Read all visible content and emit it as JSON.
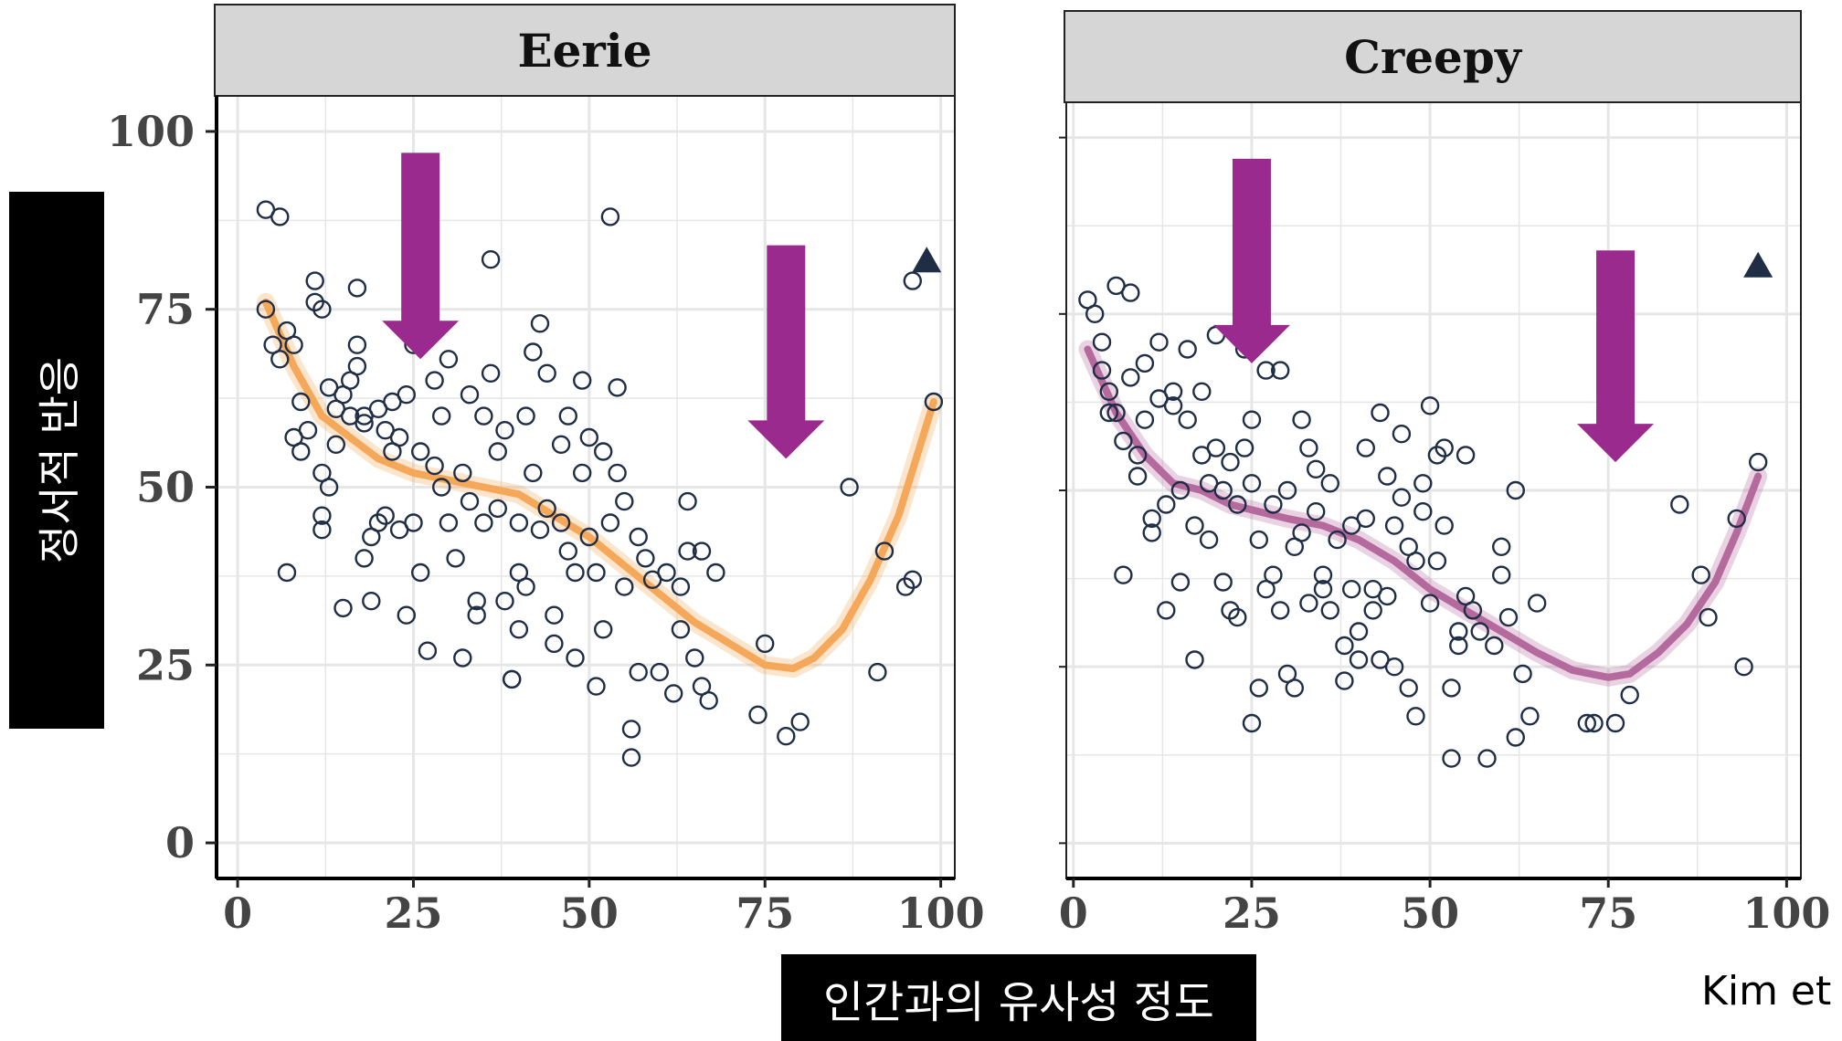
{
  "colors": {
    "eerie_line": "#f5a85a",
    "creepy_line": "#b56a9e",
    "points": "#1f2d45",
    "arrows": "#9b2a8e",
    "strip_bg": "#d6d6d6",
    "grid": "#e6e6e6"
  },
  "labels": {
    "ylabel": "정서적 반응",
    "xlabel": "인간과의 유사성 정도",
    "credit": "Kim et"
  },
  "chart_data": [
    {
      "type": "scatter",
      "title": "Eerie",
      "xlim": [
        -3,
        102
      ],
      "ylim": [
        -5,
        105
      ],
      "xticks": [
        0,
        25,
        50,
        75,
        100
      ],
      "yticks": [
        0,
        25,
        50,
        75,
        100
      ],
      "grid": true,
      "show_y_ticks": true,
      "points": [
        [
          4,
          89
        ],
        [
          6,
          88
        ],
        [
          4,
          75
        ],
        [
          5,
          70
        ],
        [
          6,
          68
        ],
        [
          7,
          72
        ],
        [
          8,
          70
        ],
        [
          7,
          38
        ],
        [
          8,
          57
        ],
        [
          9,
          55
        ],
        [
          9,
          62
        ],
        [
          10,
          58
        ],
        [
          11,
          76
        ],
        [
          11,
          79
        ],
        [
          12,
          75
        ],
        [
          12,
          52
        ],
        [
          12,
          46
        ],
        [
          12,
          44
        ],
        [
          13,
          64
        ],
        [
          13,
          50
        ],
        [
          14,
          56
        ],
        [
          14,
          61
        ],
        [
          15,
          33
        ],
        [
          15,
          63
        ],
        [
          16,
          60
        ],
        [
          16,
          65
        ],
        [
          17,
          78
        ],
        [
          17,
          70
        ],
        [
          17,
          67
        ],
        [
          18,
          60
        ],
        [
          18,
          59
        ],
        [
          18,
          40
        ],
        [
          19,
          34
        ],
        [
          19,
          43
        ],
        [
          20,
          45
        ],
        [
          20,
          61
        ],
        [
          21,
          58
        ],
        [
          21,
          46
        ],
        [
          22,
          55
        ],
        [
          22,
          62
        ],
        [
          23,
          57
        ],
        [
          23,
          44
        ],
        [
          24,
          63
        ],
        [
          24,
          32
        ],
        [
          25,
          77
        ],
        [
          25,
          86
        ],
        [
          25,
          70
        ],
        [
          25,
          45
        ],
        [
          26,
          55
        ],
        [
          26,
          38
        ],
        [
          27,
          27
        ],
        [
          28,
          65
        ],
        [
          28,
          53
        ],
        [
          29,
          60
        ],
        [
          29,
          50
        ],
        [
          30,
          68
        ],
        [
          30,
          45
        ],
        [
          31,
          40
        ],
        [
          32,
          26
        ],
        [
          32,
          52
        ],
        [
          33,
          48
        ],
        [
          33,
          63
        ],
        [
          34,
          34
        ],
        [
          34,
          32
        ],
        [
          35,
          60
        ],
        [
          35,
          45
        ],
        [
          36,
          82
        ],
        [
          36,
          66
        ],
        [
          37,
          55
        ],
        [
          37,
          47
        ],
        [
          38,
          34
        ],
        [
          38,
          58
        ],
        [
          39,
          23
        ],
        [
          39,
          23
        ],
        [
          40,
          45
        ],
        [
          40,
          38
        ],
        [
          40,
          30
        ],
        [
          41,
          60
        ],
        [
          41,
          36
        ],
        [
          42,
          52
        ],
        [
          42,
          69
        ],
        [
          43,
          73
        ],
        [
          43,
          44
        ],
        [
          44,
          66
        ],
        [
          44,
          47
        ],
        [
          45,
          32
        ],
        [
          45,
          28
        ],
        [
          46,
          56
        ],
        [
          46,
          45
        ],
        [
          47,
          60
        ],
        [
          47,
          41
        ],
        [
          48,
          26
        ],
        [
          48,
          38
        ],
        [
          49,
          52
        ],
        [
          49,
          65
        ],
        [
          50,
          57
        ],
        [
          50,
          43
        ],
        [
          51,
          22
        ],
        [
          51,
          38
        ],
        [
          52,
          30
        ],
        [
          52,
          55
        ],
        [
          53,
          88
        ],
        [
          53,
          45
        ],
        [
          54,
          64
        ],
        [
          54,
          52
        ],
        [
          55,
          48
        ],
        [
          55,
          36
        ],
        [
          56,
          16
        ],
        [
          56,
          12
        ],
        [
          57,
          43
        ],
        [
          57,
          24
        ],
        [
          58,
          40
        ],
        [
          59,
          37
        ],
        [
          60,
          24
        ],
        [
          61,
          38
        ],
        [
          62,
          21
        ],
        [
          63,
          30
        ],
        [
          63,
          36
        ],
        [
          64,
          48
        ],
        [
          64,
          41
        ],
        [
          65,
          26
        ],
        [
          66,
          41
        ],
        [
          66,
          22
        ],
        [
          67,
          20
        ],
        [
          68,
          38
        ],
        [
          74,
          18
        ],
        [
          75,
          28
        ],
        [
          78,
          15
        ],
        [
          80,
          17
        ],
        [
          87,
          50
        ],
        [
          91,
          24
        ],
        [
          92,
          41
        ],
        [
          95,
          36
        ],
        [
          96,
          37
        ],
        [
          96,
          79
        ],
        [
          99,
          62
        ]
      ],
      "triangle": [
        98,
        82
      ],
      "smooth": [
        [
          4,
          76
        ],
        [
          8,
          67
        ],
        [
          12,
          60
        ],
        [
          16,
          57
        ],
        [
          20,
          54
        ],
        [
          25,
          52
        ],
        [
          30,
          51
        ],
        [
          35,
          50
        ],
        [
          40,
          49
        ],
        [
          45,
          46
        ],
        [
          50,
          43
        ],
        [
          55,
          39
        ],
        [
          60,
          35
        ],
        [
          65,
          31
        ],
        [
          70,
          28
        ],
        [
          75,
          25
        ],
        [
          79,
          24.5
        ],
        [
          82,
          26
        ],
        [
          86,
          30
        ],
        [
          90,
          37
        ],
        [
          94,
          46
        ],
        [
          99,
          62
        ]
      ],
      "arrows": [
        [
          26,
          97,
          68
        ],
        [
          78,
          84,
          54
        ]
      ]
    },
    {
      "type": "scatter",
      "title": "Creepy",
      "xlim": [
        -1,
        102
      ],
      "ylim": [
        -5,
        105
      ],
      "xticks": [
        0,
        25,
        50,
        75,
        100
      ],
      "yticks": [
        0,
        25,
        50,
        75,
        100
      ],
      "grid": true,
      "show_y_ticks": false,
      "points": [
        [
          2,
          77
        ],
        [
          3,
          75
        ],
        [
          4,
          71
        ],
        [
          4,
          67
        ],
        [
          5,
          61
        ],
        [
          5,
          64
        ],
        [
          6,
          79
        ],
        [
          6,
          61
        ],
        [
          7,
          38
        ],
        [
          7,
          57
        ],
        [
          8,
          66
        ],
        [
          8,
          78
        ],
        [
          9,
          52
        ],
        [
          9,
          55
        ],
        [
          10,
          68
        ],
        [
          10,
          60
        ],
        [
          11,
          46
        ],
        [
          11,
          44
        ],
        [
          12,
          71
        ],
        [
          12,
          63
        ],
        [
          13,
          48
        ],
        [
          13,
          33
        ],
        [
          14,
          62
        ],
        [
          14,
          64
        ],
        [
          15,
          50
        ],
        [
          15,
          37
        ],
        [
          16,
          70
        ],
        [
          16,
          60
        ],
        [
          17,
          45
        ],
        [
          17,
          26
        ],
        [
          18,
          64
        ],
        [
          18,
          55
        ],
        [
          19,
          51
        ],
        [
          19,
          43
        ],
        [
          20,
          72
        ],
        [
          20,
          56
        ],
        [
          21,
          50
        ],
        [
          21,
          37
        ],
        [
          22,
          33
        ],
        [
          22,
          54
        ],
        [
          23,
          48
        ],
        [
          23,
          32
        ],
        [
          24,
          70
        ],
        [
          24,
          56
        ],
        [
          25,
          17
        ],
        [
          25,
          60
        ],
        [
          25,
          51
        ],
        [
          26,
          22
        ],
        [
          26,
          43
        ],
        [
          27,
          67
        ],
        [
          27,
          36
        ],
        [
          28,
          48
        ],
        [
          28,
          38
        ],
        [
          29,
          67
        ],
        [
          29,
          33
        ],
        [
          30,
          50
        ],
        [
          30,
          24
        ],
        [
          31,
          42
        ],
        [
          31,
          22
        ],
        [
          32,
          60
        ],
        [
          32,
          44
        ],
        [
          33,
          56
        ],
        [
          33,
          34
        ],
        [
          34,
          53
        ],
        [
          34,
          47
        ],
        [
          35,
          38
        ],
        [
          35,
          36
        ],
        [
          36,
          51
        ],
        [
          36,
          33
        ],
        [
          37,
          43
        ],
        [
          38,
          28
        ],
        [
          38,
          23
        ],
        [
          39,
          45
        ],
        [
          39,
          36
        ],
        [
          40,
          30
        ],
        [
          40,
          26
        ],
        [
          41,
          56
        ],
        [
          41,
          46
        ],
        [
          42,
          36
        ],
        [
          42,
          33
        ],
        [
          43,
          61
        ],
        [
          43,
          26
        ],
        [
          44,
          52
        ],
        [
          44,
          35
        ],
        [
          45,
          45
        ],
        [
          45,
          25
        ],
        [
          46,
          58
        ],
        [
          46,
          49
        ],
        [
          47,
          42
        ],
        [
          47,
          22
        ],
        [
          48,
          18
        ],
        [
          48,
          40
        ],
        [
          49,
          51
        ],
        [
          49,
          47
        ],
        [
          50,
          62
        ],
        [
          50,
          34
        ],
        [
          51,
          40
        ],
        [
          51,
          55
        ],
        [
          52,
          45
        ],
        [
          52,
          56
        ],
        [
          53,
          22
        ],
        [
          53,
          12
        ],
        [
          54,
          30
        ],
        [
          54,
          28
        ],
        [
          55,
          35
        ],
        [
          55,
          55
        ],
        [
          56,
          33
        ],
        [
          57,
          30
        ],
        [
          58,
          12
        ],
        [
          59,
          28
        ],
        [
          60,
          42
        ],
        [
          60,
          38
        ],
        [
          61,
          32
        ],
        [
          62,
          15
        ],
        [
          62,
          50
        ],
        [
          63,
          24
        ],
        [
          64,
          18
        ],
        [
          65,
          34
        ],
        [
          72,
          17
        ],
        [
          73,
          17
        ],
        [
          76,
          17
        ],
        [
          78,
          21
        ],
        [
          85,
          48
        ],
        [
          88,
          38
        ],
        [
          89,
          32
        ],
        [
          93,
          46
        ],
        [
          94,
          25
        ],
        [
          96,
          54
        ]
      ],
      "triangle": [
        96,
        82
      ],
      "smooth": [
        [
          2,
          70
        ],
        [
          6,
          61
        ],
        [
          10,
          55
        ],
        [
          14,
          51
        ],
        [
          18,
          50
        ],
        [
          22,
          48
        ],
        [
          26,
          47
        ],
        [
          30,
          46
        ],
        [
          35,
          45
        ],
        [
          40,
          43
        ],
        [
          45,
          40
        ],
        [
          50,
          36
        ],
        [
          55,
          33
        ],
        [
          60,
          30
        ],
        [
          65,
          27
        ],
        [
          70,
          24.5
        ],
        [
          75,
          23.5
        ],
        [
          78,
          24
        ],
        [
          82,
          27
        ],
        [
          86,
          31
        ],
        [
          90,
          37
        ],
        [
          93,
          44
        ],
        [
          96,
          52
        ]
      ],
      "arrows": [
        [
          25,
          97,
          68
        ],
        [
          76,
          84,
          54
        ]
      ]
    }
  ]
}
